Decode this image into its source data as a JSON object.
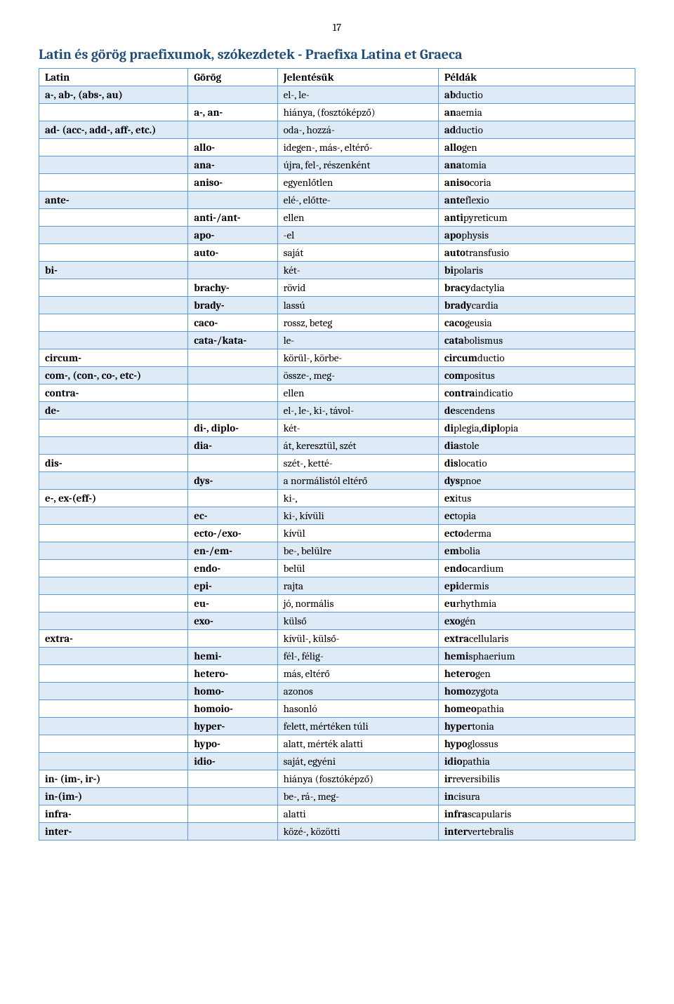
{
  "page_number": "17",
  "title": "Latin és görög praefixumok, szókezdetek - Praefixa Latina et Graeca",
  "columns": [
    "Latin",
    "Görög",
    "Jelentésük",
    "Példák"
  ],
  "colors": {
    "title": "#1f4e79",
    "border": "#5b9bd5",
    "alt_row": "#deeaf6",
    "norm_row": "#ffffff"
  },
  "rows": [
    {
      "alt": true,
      "c1": "a-, ab-, (abs-, au)",
      "c2": "",
      "c3": "el-, le-",
      "c4p": "ab",
      "c4s": "ductio"
    },
    {
      "alt": false,
      "c1": "",
      "c2": "a-, an-",
      "c3": "hiánya, (fosztóképző)",
      "c4p": "an",
      "c4s": "aemia"
    },
    {
      "alt": true,
      "c1": "ad- (acc-, add-, aff-, etc.)",
      "c2": "",
      "c3": "oda-, hozzá-",
      "c4p": "ad",
      "c4s": "ductio"
    },
    {
      "alt": false,
      "c1": "",
      "c2": "allo-",
      "c3": "idegen-, más-, eltérő-",
      "c4p": "allo",
      "c4s": "gen"
    },
    {
      "alt": true,
      "c1": "",
      "c2": "ana-",
      "c3": "újra, fel-, részenként",
      "c4p": "ana",
      "c4s": "tomia"
    },
    {
      "alt": false,
      "c1": "",
      "c2": "aniso-",
      "c3": "egyenlőtlen",
      "c4p": "aniso",
      "c4s": "coria"
    },
    {
      "alt": true,
      "c1": "ante-",
      "c2": "",
      "c3": "elé-, előtte-",
      "c4p": "ante",
      "c4s": "flexio"
    },
    {
      "alt": false,
      "c1": "",
      "c2": "anti-/ant-",
      "c3": "ellen",
      "c4p": "anti",
      "c4s": "pyreticum"
    },
    {
      "alt": true,
      "c1": "",
      "c2": "apo-",
      "c3": "-el",
      "c4p": "apo",
      "c4s": "physis"
    },
    {
      "alt": false,
      "c1": "",
      "c2": "auto-",
      "c3": "saját",
      "c4p": "auto",
      "c4s": "transfusio"
    },
    {
      "alt": true,
      "c1": "bi-",
      "c2": "",
      "c3": "két-",
      "c4p": "bi",
      "c4s": "polaris"
    },
    {
      "alt": false,
      "c1": "",
      "c2": "brachy-",
      "c3": "rövid",
      "c4p": "bracy",
      "c4s": "dactylia"
    },
    {
      "alt": true,
      "c1": "",
      "c2": "brady-",
      "c3": "lassú",
      "c4p": "brady",
      "c4s": "cardia"
    },
    {
      "alt": false,
      "c1": "",
      "c2": "caco-",
      "c3": "rossz, beteg",
      "c4p": "caco",
      "c4s": "geusia"
    },
    {
      "alt": true,
      "c1": "",
      "c2": "cata-/kata-",
      "c3": "le-",
      "c4p": "cata",
      "c4s": "bolismus"
    },
    {
      "alt": false,
      "c1": "circum-",
      "c2": "",
      "c3": "körül-, körbe-",
      "c4p": "circum",
      "c4s": "ductio"
    },
    {
      "alt": true,
      "c1": "com-, (con-, co-, etc-)",
      "c2": "",
      "c3": "össze-, meg-",
      "c4p": "com",
      "c4s": "positus"
    },
    {
      "alt": false,
      "c1": "contra-",
      "c2": "",
      "c3": "ellen",
      "c4p": "contra",
      "c4s": "indicatio"
    },
    {
      "alt": true,
      "c1": "de-",
      "c2": "",
      "c3": "el-, le-, ki-, távol-",
      "c4p": "de",
      "c4s": "scendens"
    },
    {
      "alt": false,
      "c1": "",
      "c2": "di-, diplo-",
      "c3": "két-",
      "c4p": "di",
      "c4s": "plegia,",
      "c4p2": "dipl",
      "c4s2": "opia"
    },
    {
      "alt": true,
      "c1": "",
      "c2": "dia-",
      "c3": "át, keresztül, szét",
      "c4p": "dia",
      "c4s": "stole"
    },
    {
      "alt": false,
      "c1": "dis-",
      "c2": "",
      "c3": "szét-, ketté-",
      "c4p": "dis",
      "c4s": "locatio"
    },
    {
      "alt": true,
      "c1": "",
      "c2": "dys-",
      "c3": "a normálistól eltérő",
      "c4p": "dys",
      "c4s": "pnoe"
    },
    {
      "alt": false,
      "c1": "e-, ex-(eff-)",
      "c2": "",
      "c3": "ki-,",
      "c4p": "ex",
      "c4s": "itus"
    },
    {
      "alt": true,
      "c1": "",
      "c2": "ec-",
      "c3": "ki-, kívüli",
      "c4p": "ec",
      "c4s": "topia"
    },
    {
      "alt": false,
      "c1": "",
      "c2": "ecto-/exo-",
      "c3": "kívül",
      "c4p": "ecto",
      "c4s": "derma"
    },
    {
      "alt": true,
      "c1": "",
      "c2": "en-/em-",
      "c3": "be-, belülre",
      "c4p": "em",
      "c4s": "bolia"
    },
    {
      "alt": false,
      "c1": "",
      "c2": "endo-",
      "c3": "belül",
      "c4p": "endo",
      "c4s": "cardium"
    },
    {
      "alt": true,
      "c1": "",
      "c2": "epi-",
      "c3": "rajta",
      "c4p": "epi",
      "c4s": "dermis"
    },
    {
      "alt": false,
      "c1": "",
      "c2": "eu-",
      "c3": "jó, normális",
      "c4p": "eu",
      "c4s": "rhythmia"
    },
    {
      "alt": true,
      "c1": "",
      "c2": "exo-",
      "c3": "külső",
      "c4p": "exo",
      "c4s": "gén"
    },
    {
      "alt": false,
      "c1": "extra-",
      "c2": "",
      "c3": "kívül-, külső-",
      "c4p": "extra",
      "c4s": "cellularis"
    },
    {
      "alt": true,
      "c1": "",
      "c2": "hemi-",
      "c3": "fél-, félig-",
      "c4p": "hemi",
      "c4s": "sphaerium"
    },
    {
      "alt": false,
      "c1": "",
      "c2": "hetero-",
      "c3": "más, eltérő",
      "c4p": "hetero",
      "c4s": "gen"
    },
    {
      "alt": true,
      "c1": "",
      "c2": "homo-",
      "c3": "azonos",
      "c4p": "homo",
      "c4s": "zygota"
    },
    {
      "alt": false,
      "c1": "",
      "c2": "homoio-",
      "c3": "hasonló",
      "c4p": "homeo",
      "c4s": "pathia"
    },
    {
      "alt": true,
      "c1": "",
      "c2": "hyper-",
      "c3": "felett, mértéken túli",
      "c4p": "hyper",
      "c4s": "tonia"
    },
    {
      "alt": false,
      "c1": "",
      "c2": "hypo-",
      "c3": "alatt, mérték alatti",
      "c4p": "hypo",
      "c4s": "glossus"
    },
    {
      "alt": true,
      "c1": "",
      "c2": "idio-",
      "c3": "saját, egyéni",
      "c4p": "idio",
      "c4s": "pathia"
    },
    {
      "alt": false,
      "c1": "in- (im-, ir-)",
      "c2": "",
      "c3": "hiánya (fosztóképző)",
      "c4p": "ir",
      "c4s": "reversibilis"
    },
    {
      "alt": true,
      "c1": "in-(im-)",
      "c2": "",
      "c3": "be-, rá-, meg-",
      "c4p": "in",
      "c4s": "cisura"
    },
    {
      "alt": false,
      "c1": "infra-",
      "c2": "",
      "c3": "alatti",
      "c4p": "infra",
      "c4s": "scapularis"
    },
    {
      "alt": true,
      "c1": "inter-",
      "c2": "",
      "c3": "közé-, közötti",
      "c4p": "inter",
      "c4s": "vertebralis"
    }
  ]
}
